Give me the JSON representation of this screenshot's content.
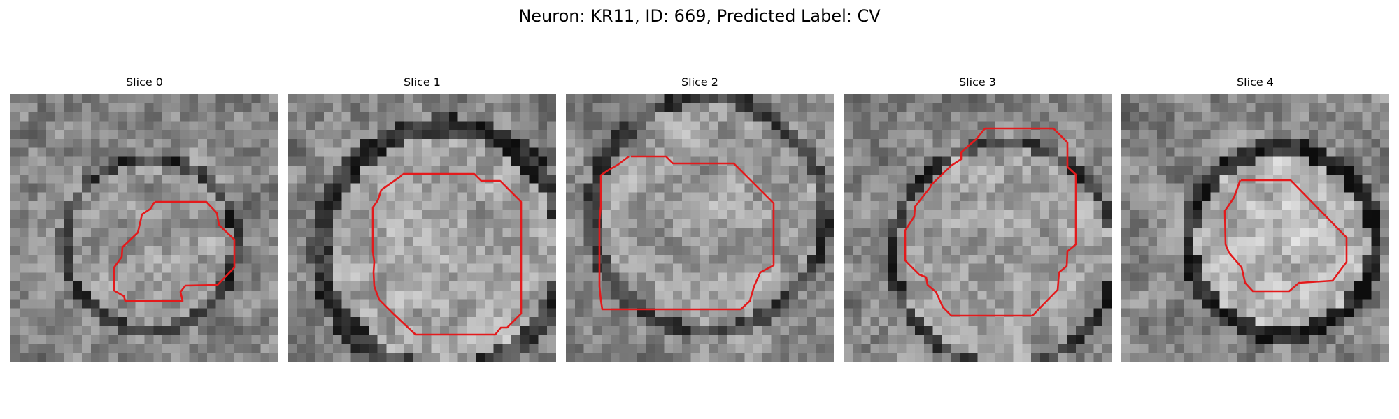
{
  "suptitle": "Neuron: KR11, ID: 669, Predicted Label: CV",
  "contour_color": "#e31a1c",
  "panels": [
    {
      "title": "Slice 0"
    },
    {
      "title": "Slice 1"
    },
    {
      "title": "Slice 2"
    },
    {
      "title": "Slice 3"
    },
    {
      "title": "Slice 4"
    }
  ]
}
